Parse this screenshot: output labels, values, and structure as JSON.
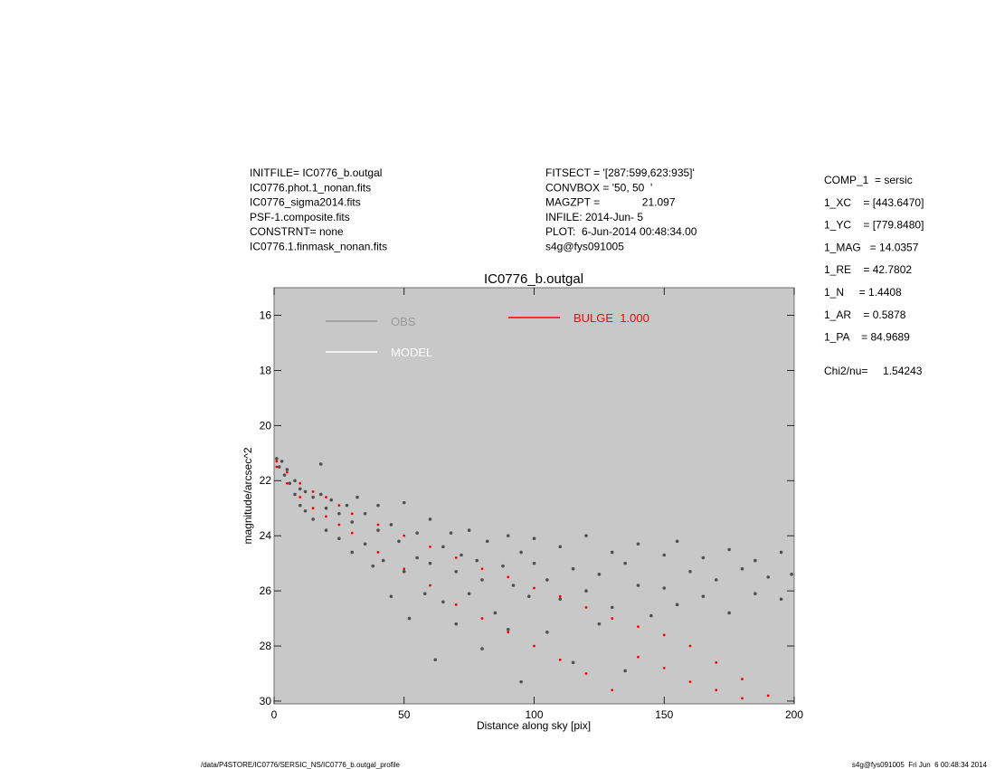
{
  "header": {
    "left": [
      "INITFILE= IC0776_b.outgal",
      "IC0776.phot.1_nonan.fits",
      "IC0776_sigma2014.fits",
      "PSF-1.composite.fits",
      "CONSTRNT= none",
      "IC0776.1.finmask_nonan.fits"
    ],
    "middle": [
      "FITSECT = '[287:599,623:935]'",
      "CONVBOX = '50, 50  '",
      "MAGZPT =              21.097",
      "INFILE: 2014-Jun- 5",
      "PLOT:  6-Jun-2014 00:48:34.00",
      "s4g@fys091005"
    ],
    "right": [
      "COMP_1  = sersic",
      "1_XC    = [443.6470]",
      "1_YC    = [779.8480]",
      "1_MAG   = 14.0357",
      "1_RE    = 42.7802",
      "1_N     = 1.4408",
      "1_AR    = 0.5878",
      "1_PA    = 84.9689"
    ],
    "chi2": "Chi2/nu=     1.54243"
  },
  "footer": {
    "left": "/data/P4STORE/IC0776/SERSIC_NS/IC0776_b.outgal_profile",
    "right": "s4g@fys091005  Fri Jun  6 00:48:34 2014"
  },
  "chart_data": {
    "type": "scatter",
    "title": "IC0776_b.outgal",
    "x_label": "Distance along sky [pix]",
    "y_label": "magnitude/arcsec^2",
    "xlim": [
      0,
      200
    ],
    "xticks": [
      0,
      50,
      100,
      150,
      200
    ],
    "ylim": [
      15,
      30.1
    ],
    "y_inverted": true,
    "yticks": [
      16,
      18,
      20,
      22,
      24,
      26,
      28,
      30
    ],
    "background": "#c8c8c8",
    "series": [
      {
        "name": "OBS",
        "color": "#999999",
        "marker_color": "#505050",
        "x": [
          1,
          2,
          3,
          4,
          5,
          6,
          8,
          8,
          10,
          10,
          12,
          12,
          15,
          15,
          18,
          18,
          20,
          20,
          22,
          25,
          25,
          28,
          30,
          30,
          32,
          35,
          35,
          38,
          40,
          40,
          42,
          45,
          45,
          48,
          50,
          50,
          52,
          55,
          55,
          58,
          60,
          60,
          62,
          65,
          65,
          68,
          70,
          70,
          72,
          75,
          75,
          78,
          80,
          80,
          82,
          85,
          88,
          90,
          90,
          92,
          95,
          95,
          98,
          100,
          100,
          105,
          105,
          110,
          110,
          115,
          115,
          120,
          120,
          125,
          125,
          130,
          130,
          135,
          135,
          140,
          140,
          145,
          150,
          150,
          155,
          155,
          160,
          165,
          165,
          170,
          175,
          175,
          180,
          185,
          185,
          190,
          195,
          195,
          199
        ],
        "values": [
          21.2,
          21.5,
          21.3,
          21.8,
          21.6,
          22.1,
          22.0,
          22.5,
          22.3,
          22.9,
          22.4,
          23.1,
          22.6,
          23.4,
          21.4,
          22.5,
          23.0,
          23.8,
          22.7,
          23.2,
          24.1,
          22.9,
          23.5,
          24.6,
          22.6,
          23.2,
          24.3,
          25.1,
          23.8,
          22.9,
          24.9,
          23.6,
          26.2,
          24.2,
          22.8,
          25.3,
          27.0,
          23.9,
          24.8,
          26.1,
          23.4,
          25.0,
          28.5,
          24.4,
          26.4,
          23.9,
          25.3,
          27.2,
          24.7,
          23.8,
          26.1,
          24.9,
          25.6,
          28.1,
          24.2,
          26.8,
          25.1,
          24.0,
          27.4,
          25.8,
          24.6,
          29.3,
          26.2,
          25.0,
          24.1,
          25.6,
          27.5,
          24.4,
          26.3,
          25.2,
          28.6,
          24.0,
          26.0,
          25.4,
          27.2,
          24.6,
          26.6,
          25.0,
          28.9,
          24.3,
          25.8,
          26.9,
          24.7,
          25.9,
          24.2,
          26.5,
          25.3,
          24.8,
          26.2,
          25.6,
          24.5,
          26.8,
          25.2,
          24.9,
          26.1,
          25.5,
          24.6,
          26.3,
          25.4
        ]
      },
      {
        "name": "MODEL",
        "color": "#ffffff",
        "x": [],
        "values": []
      },
      {
        "name": "BULGE  1.000",
        "color": "#ff0000",
        "marker_color": "#ff0000",
        "x": [
          1,
          1,
          5,
          5,
          10,
          10,
          15,
          15,
          20,
          20,
          25,
          25,
          30,
          30,
          40,
          40,
          50,
          50,
          60,
          60,
          70,
          70,
          80,
          80,
          90,
          90,
          100,
          100,
          110,
          110,
          120,
          120,
          130,
          130,
          140,
          140,
          150,
          150,
          160,
          160,
          170,
          170,
          180,
          180,
          190
        ],
        "values": [
          21.3,
          21.5,
          21.7,
          22.1,
          22.1,
          22.6,
          22.4,
          23.0,
          22.6,
          23.3,
          22.9,
          23.6,
          23.2,
          23.9,
          23.6,
          24.6,
          24.0,
          25.2,
          24.4,
          25.8,
          24.8,
          26.5,
          25.2,
          27.0,
          25.5,
          27.5,
          25.9,
          28.0,
          26.2,
          28.5,
          26.6,
          29.0,
          27.0,
          29.6,
          27.3,
          28.4,
          27.6,
          28.8,
          28.0,
          29.3,
          28.6,
          29.6,
          29.2,
          29.9,
          29.8
        ]
      }
    ]
  }
}
